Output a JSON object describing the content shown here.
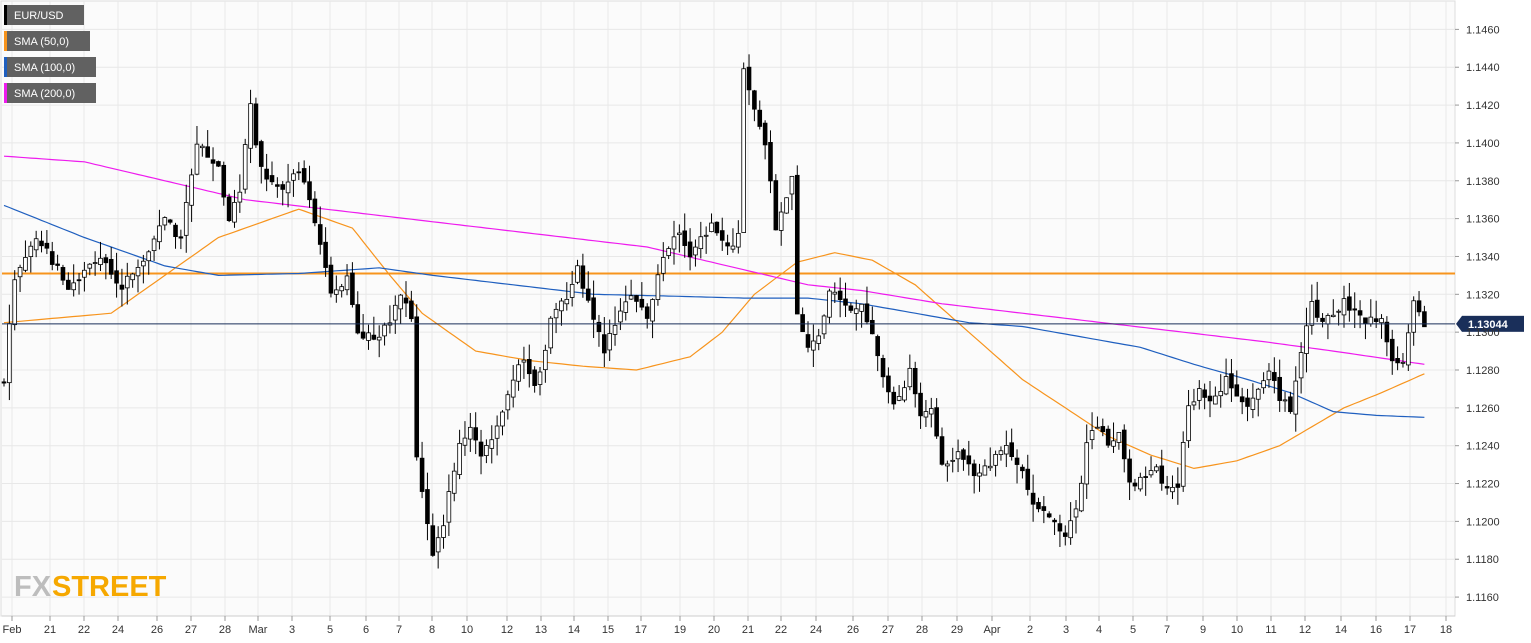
{
  "chart_data": {
    "type": "candlestick",
    "symbol": "EUR/USD",
    "ylim": [
      1.115,
      1.1475
    ],
    "y_ticks": [
      "1.1460",
      "1.1440",
      "1.1420",
      "1.1400",
      "1.1380",
      "1.1360",
      "1.1340",
      "1.1320",
      "1.1300",
      "1.1280",
      "1.1260",
      "1.1240",
      "1.1220",
      "1.1200",
      "1.1180",
      "1.1160"
    ],
    "x_ticks": [
      "Feb",
      "21",
      "22",
      "24",
      "26",
      "27",
      "28",
      "Mar",
      "3",
      "5",
      "6",
      "7",
      "8",
      "10",
      "12",
      "13",
      "14",
      "15",
      "17",
      "19",
      "20",
      "21",
      "22",
      "24",
      "26",
      "27",
      "28",
      "29",
      "Apr",
      "2",
      "3",
      "4",
      "5",
      "7",
      "9",
      "10",
      "11",
      "12",
      "14",
      "16",
      "17",
      "18"
    ],
    "legend": [
      "EUR/USD",
      "SMA (50,0)",
      "SMA (100,0)",
      "SMA (200,0)"
    ],
    "current_price": "1.13044",
    "current_price_value": 1.13044,
    "resistance_level": 1.1331,
    "grid": true,
    "legend_position": "top-left",
    "colors": {
      "up_candle": "#ffffff",
      "down_candle": "#000000",
      "sma50": "#f7941d",
      "sma100": "#1f5fbf",
      "sma200": "#ee1bee",
      "resistance": "#f7941d",
      "price_line": "#1a2f5a",
      "price_label": "#1a2f5a",
      "legend_bg": "#616161",
      "grid": "#e8e8e8"
    },
    "waypoints": [
      [
        0,
        1.1275
      ],
      [
        2,
        1.133
      ],
      [
        6,
        1.135
      ],
      [
        12,
        1.1325
      ],
      [
        18,
        1.134
      ],
      [
        22,
        1.1325
      ],
      [
        26,
        1.1335
      ],
      [
        30,
        1.136
      ],
      [
        33,
        1.135
      ],
      [
        36,
        1.14
      ],
      [
        40,
        1.1385
      ],
      [
        42,
        1.136
      ],
      [
        44,
        1.1375
      ],
      [
        46,
        1.1418
      ],
      [
        48,
        1.1385
      ],
      [
        52,
        1.1375
      ],
      [
        55,
        1.1385
      ],
      [
        58,
        1.136
      ],
      [
        61,
        1.132
      ],
      [
        64,
        1.133
      ],
      [
        66,
        1.13
      ],
      [
        70,
        1.1295
      ],
      [
        74,
        1.132
      ],
      [
        76,
        1.1305
      ],
      [
        77,
        1.1235
      ],
      [
        80,
        1.1185
      ],
      [
        82,
        1.12
      ],
      [
        85,
        1.124
      ],
      [
        87,
        1.125
      ],
      [
        89,
        1.1235
      ],
      [
        92,
        1.125
      ],
      [
        95,
        1.1275
      ],
      [
        97,
        1.1285
      ],
      [
        99,
        1.127
      ],
      [
        102,
        1.1305
      ],
      [
        105,
        1.132
      ],
      [
        107,
        1.1335
      ],
      [
        110,
        1.1305
      ],
      [
        112,
        1.129
      ],
      [
        115,
        1.131
      ],
      [
        117,
        1.132
      ],
      [
        120,
        1.131
      ],
      [
        123,
        1.134
      ],
      [
        126,
        1.1355
      ],
      [
        128,
        1.134
      ],
      [
        132,
        1.1355
      ],
      [
        135,
        1.1345
      ],
      [
        137,
        1.135
      ],
      [
        138,
        1.144
      ],
      [
        140,
        1.142
      ],
      [
        142,
        1.14
      ],
      [
        144,
        1.1355
      ],
      [
        146,
        1.137
      ],
      [
        147,
        1.1385
      ],
      [
        148,
        1.131
      ],
      [
        150,
        1.129
      ],
      [
        152,
        1.13
      ],
      [
        154,
        1.132
      ],
      [
        156,
        1.132
      ],
      [
        158,
        1.131
      ],
      [
        160,
        1.1315
      ],
      [
        162,
        1.13
      ],
      [
        164,
        1.1275
      ],
      [
        166,
        1.126
      ],
      [
        168,
        1.127
      ],
      [
        169,
        1.128
      ],
      [
        171,
        1.1255
      ],
      [
        173,
        1.126
      ],
      [
        175,
        1.123
      ],
      [
        178,
        1.1235
      ],
      [
        181,
        1.1225
      ],
      [
        184,
        1.123
      ],
      [
        187,
        1.124
      ],
      [
        190,
        1.1225
      ],
      [
        193,
        1.1205
      ],
      [
        196,
        1.12
      ],
      [
        198,
        1.119
      ],
      [
        200,
        1.1205
      ],
      [
        202,
        1.124
      ],
      [
        204,
        1.125
      ],
      [
        206,
        1.124
      ],
      [
        208,
        1.1245
      ],
      [
        210,
        1.122
      ],
      [
        213,
        1.1225
      ],
      [
        215,
        1.123
      ],
      [
        217,
        1.1215
      ],
      [
        219,
        1.122
      ],
      [
        221,
        1.126
      ],
      [
        223,
        1.127
      ],
      [
        226,
        1.1265
      ],
      [
        228,
        1.1275
      ],
      [
        230,
        1.1265
      ],
      [
        232,
        1.126
      ],
      [
        234,
        1.127
      ],
      [
        236,
        1.128
      ],
      [
        238,
        1.1265
      ],
      [
        240,
        1.126
      ],
      [
        242,
        1.129
      ],
      [
        244,
        1.1315
      ],
      [
        246,
        1.1305
      ],
      [
        248,
        1.131
      ],
      [
        250,
        1.1315
      ],
      [
        252,
        1.131
      ],
      [
        255,
        1.1305
      ],
      [
        257,
        1.131
      ],
      [
        259,
        1.1285
      ],
      [
        261,
        1.1285
      ],
      [
        263,
        1.1315
      ],
      [
        265,
        1.1304
      ]
    ],
    "sma50_points": [
      [
        0,
        1.1305
      ],
      [
        20,
        1.131
      ],
      [
        40,
        1.135
      ],
      [
        55,
        1.1365
      ],
      [
        65,
        1.1355
      ],
      [
        72,
        1.133
      ],
      [
        78,
        1.131
      ],
      [
        88,
        1.129
      ],
      [
        98,
        1.1285
      ],
      [
        108,
        1.1282
      ],
      [
        118,
        1.128
      ],
      [
        128,
        1.1287
      ],
      [
        134,
        1.13
      ],
      [
        140,
        1.132
      ],
      [
        148,
        1.1337
      ],
      [
        155,
        1.1342
      ],
      [
        162,
        1.1338
      ],
      [
        170,
        1.1325
      ],
      [
        180,
        1.13
      ],
      [
        190,
        1.1275
      ],
      [
        198,
        1.126
      ],
      [
        206,
        1.1245
      ],
      [
        214,
        1.1235
      ],
      [
        222,
        1.1228
      ],
      [
        230,
        1.1232
      ],
      [
        238,
        1.124
      ],
      [
        244,
        1.125
      ],
      [
        250,
        1.126
      ],
      [
        257,
        1.1268
      ],
      [
        265,
        1.1278
      ]
    ],
    "sma100_points": [
      [
        0,
        1.1367
      ],
      [
        15,
        1.135
      ],
      [
        30,
        1.1335
      ],
      [
        40,
        1.133
      ],
      [
        55,
        1.1331
      ],
      [
        70,
        1.1334
      ],
      [
        80,
        1.133
      ],
      [
        95,
        1.1325
      ],
      [
        110,
        1.132
      ],
      [
        125,
        1.1319
      ],
      [
        138,
        1.1318
      ],
      [
        150,
        1.1318
      ],
      [
        160,
        1.1315
      ],
      [
        170,
        1.131
      ],
      [
        180,
        1.1305
      ],
      [
        190,
        1.1303
      ],
      [
        200,
        1.1298
      ],
      [
        212,
        1.1292
      ],
      [
        222,
        1.1283
      ],
      [
        232,
        1.1275
      ],
      [
        240,
        1.1268
      ],
      [
        248,
        1.1258
      ],
      [
        256,
        1.1256
      ],
      [
        265,
        1.1255
      ]
    ],
    "sma200_points": [
      [
        0,
        1.1393
      ],
      [
        15,
        1.139
      ],
      [
        30,
        1.138
      ],
      [
        45,
        1.137
      ],
      [
        60,
        1.1365
      ],
      [
        75,
        1.136
      ],
      [
        90,
        1.1355
      ],
      [
        105,
        1.135
      ],
      [
        120,
        1.1345
      ],
      [
        135,
        1.1335
      ],
      [
        150,
        1.1325
      ],
      [
        160,
        1.1322
      ],
      [
        175,
        1.1315
      ],
      [
        190,
        1.131
      ],
      [
        205,
        1.1305
      ],
      [
        220,
        1.13
      ],
      [
        235,
        1.1295
      ],
      [
        248,
        1.129
      ],
      [
        265,
        1.1283
      ]
    ]
  }
}
